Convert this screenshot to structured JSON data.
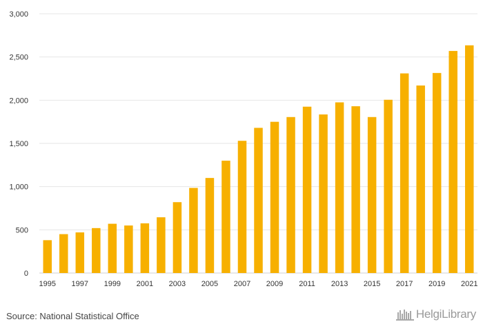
{
  "chart_data": {
    "type": "bar",
    "title": "",
    "xlabel": "",
    "ylabel": "",
    "categories": [
      "1995",
      "1996",
      "1997",
      "1998",
      "1999",
      "2000",
      "2001",
      "2002",
      "2003",
      "2004",
      "2005",
      "2006",
      "2007",
      "2008",
      "2009",
      "2010",
      "2011",
      "2012",
      "2013",
      "2014",
      "2015",
      "2016",
      "2017",
      "2018",
      "2019",
      "2020",
      "2021"
    ],
    "values": [
      380,
      450,
      470,
      520,
      570,
      550,
      575,
      645,
      820,
      985,
      1100,
      1300,
      1530,
      1680,
      1750,
      1805,
      1925,
      1835,
      1975,
      1930,
      1805,
      2005,
      2310,
      2170,
      2315,
      2570,
      2635
    ],
    "x_tick_labels": [
      "1995",
      "1997",
      "1999",
      "2001",
      "2003",
      "2005",
      "2007",
      "2009",
      "2011",
      "2013",
      "2015",
      "2017",
      "2019",
      "2021"
    ],
    "ylim": [
      0,
      3000
    ],
    "y_ticks": [
      0,
      500,
      1000,
      1500,
      2000,
      2500,
      3000
    ],
    "y_tick_labels": [
      "0",
      "500",
      "1,000",
      "1,500",
      "2,000",
      "2,500",
      "3,000"
    ],
    "grid": true,
    "bar_color": "#f7b000",
    "grid_color": "#e6e6e6"
  },
  "footer": {
    "source": "Source: National Statistical Office",
    "brand": "HelgiLibrary",
    "brand_icon": "library-icon"
  }
}
